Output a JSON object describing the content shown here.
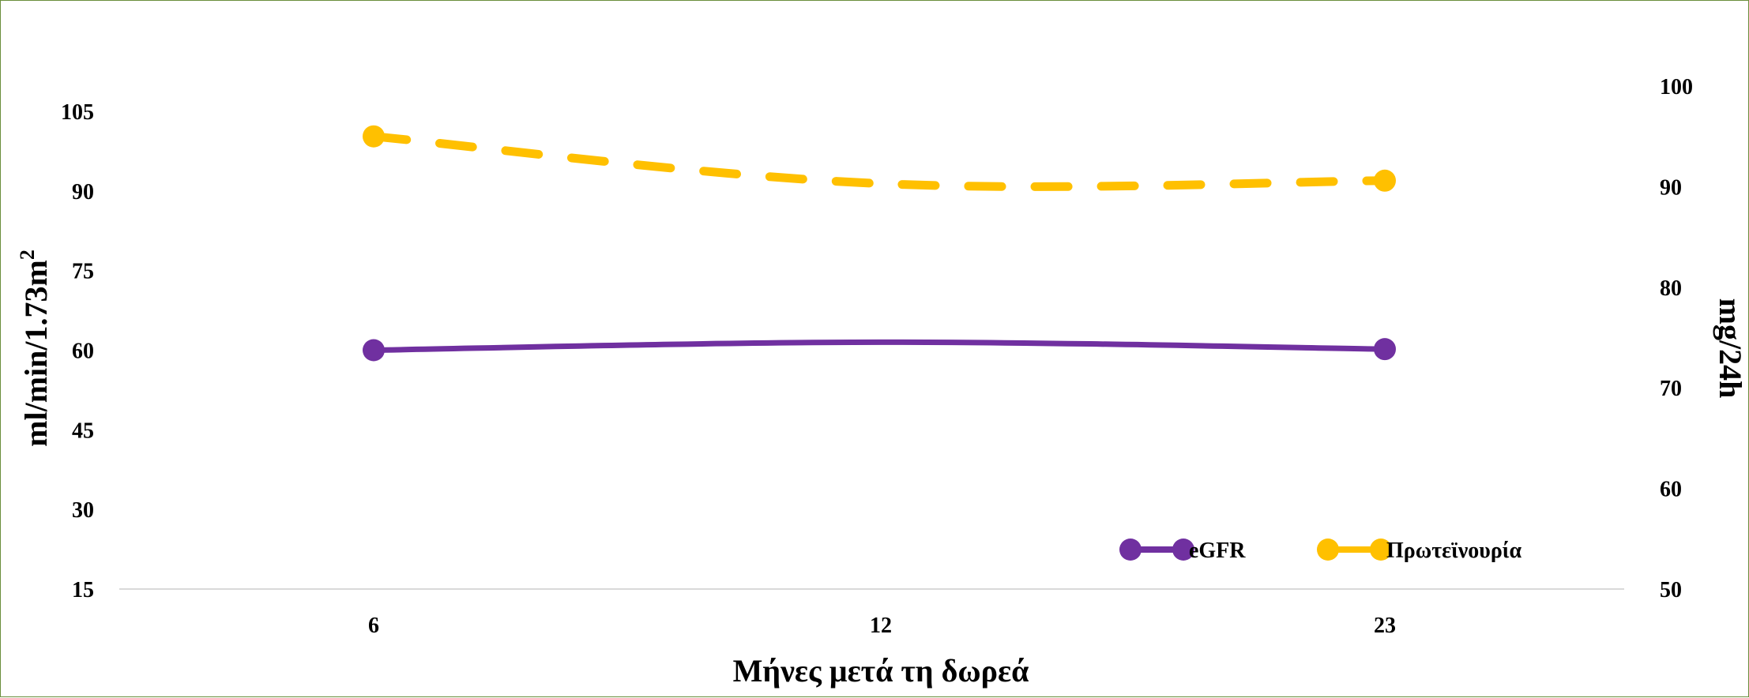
{
  "chart_data": {
    "type": "line",
    "x": [
      "6",
      "12",
      "23"
    ],
    "xlabel": "Μήνες μετά τη δωρεά",
    "ylabel_left": "ml/min/1.73m",
    "ylabel_left_sup": "2",
    "ylabel_right": "mg/24h",
    "y_left_ticks": [
      15,
      30,
      45,
      60,
      75,
      90,
      105
    ],
    "y_left_lim": [
      15,
      105
    ],
    "y_right_ticks": [
      50,
      60,
      70,
      80,
      90,
      100
    ],
    "y_right_lim": [
      50,
      100
    ],
    "grid": false,
    "legend_position": "bottom-right",
    "series": [
      {
        "name": "eGFR",
        "axis": "left",
        "values": [
          60,
          61.5,
          60.2
        ],
        "color": "#7030a0",
        "style": "solid"
      },
      {
        "name": "Πρωτεϊνουρία",
        "axis": "right",
        "values": [
          95,
          90.3,
          90.6
        ],
        "color": "#ffc000",
        "style": "dashed"
      }
    ]
  }
}
